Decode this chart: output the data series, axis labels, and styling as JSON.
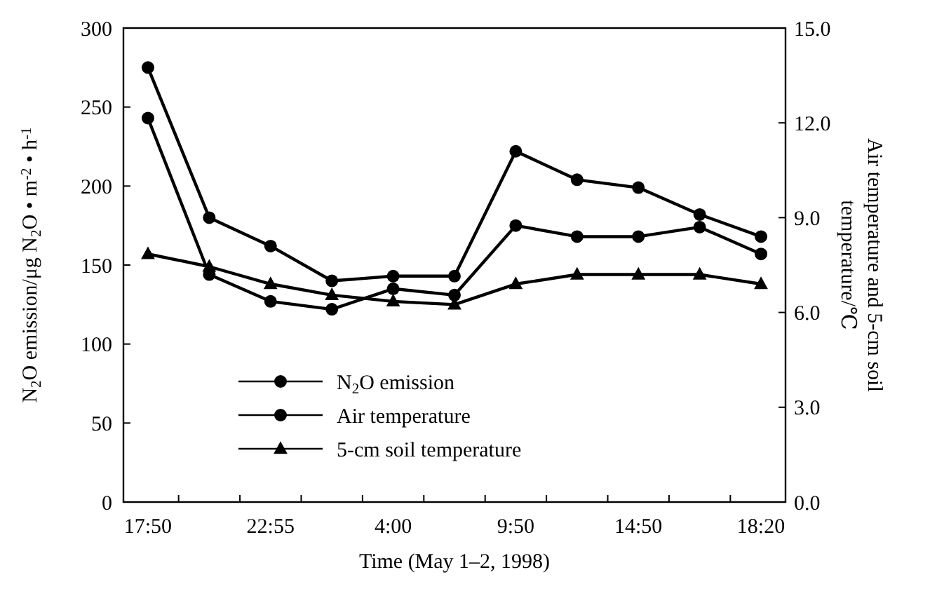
{
  "chart_data": {
    "type": "line",
    "xlabel": "Time (May 1–2, 1998)",
    "ylabel": "N$_{2}$O emission/μg N$_{2}$O • m$^{-2}$ • h$^{-1}$",
    "y2label": "Air temperature and 5-cm soil temperature/℃",
    "categories": [
      "17:50",
      null,
      "22:55",
      null,
      "4:00",
      null,
      "9:50",
      null,
      "14:50",
      null,
      "18:20"
    ],
    "series": [
      {
        "name": "N$_{2}$O emission",
        "color": "#000000",
        "marker": "circle",
        "values": [
          275,
          180,
          162,
          140,
          143,
          143,
          222,
          204,
          199,
          182,
          168
        ]
      },
      {
        "name": "Air temperature",
        "color": "#000000",
        "marker": "circle",
        "axis": "y2",
        "values": [
          12.15,
          7.2,
          6.35,
          6.1,
          6.75,
          6.55,
          8.75,
          8.4,
          8.4,
          8.7,
          7.85
        ]
      },
      {
        "name": "5-cm soil temperature",
        "color": "#000000",
        "marker": "triangle",
        "axis": "y2",
        "values": [
          7.85,
          7.45,
          6.9,
          6.55,
          6.35,
          6.25,
          6.9,
          7.2,
          7.2,
          7.2,
          6.9
        ]
      }
    ],
    "ylim": [
      0,
      300
    ],
    "yticks": [
      0,
      50,
      100,
      150,
      200,
      250,
      300
    ],
    "y2lim": [
      0,
      15
    ],
    "y2ticks": [
      {
        "value": 0,
        "label": "0.0"
      },
      {
        "value": 3,
        "label": "3.0"
      },
      {
        "value": 6,
        "label": "6.0"
      },
      {
        "value": 9,
        "label": "9.0"
      },
      {
        "value": 12,
        "label": "12.0"
      },
      {
        "value": 15,
        "label": "15.0"
      }
    ],
    "legend": "bottom left",
    "grid": false,
    "line_style": "solid"
  }
}
